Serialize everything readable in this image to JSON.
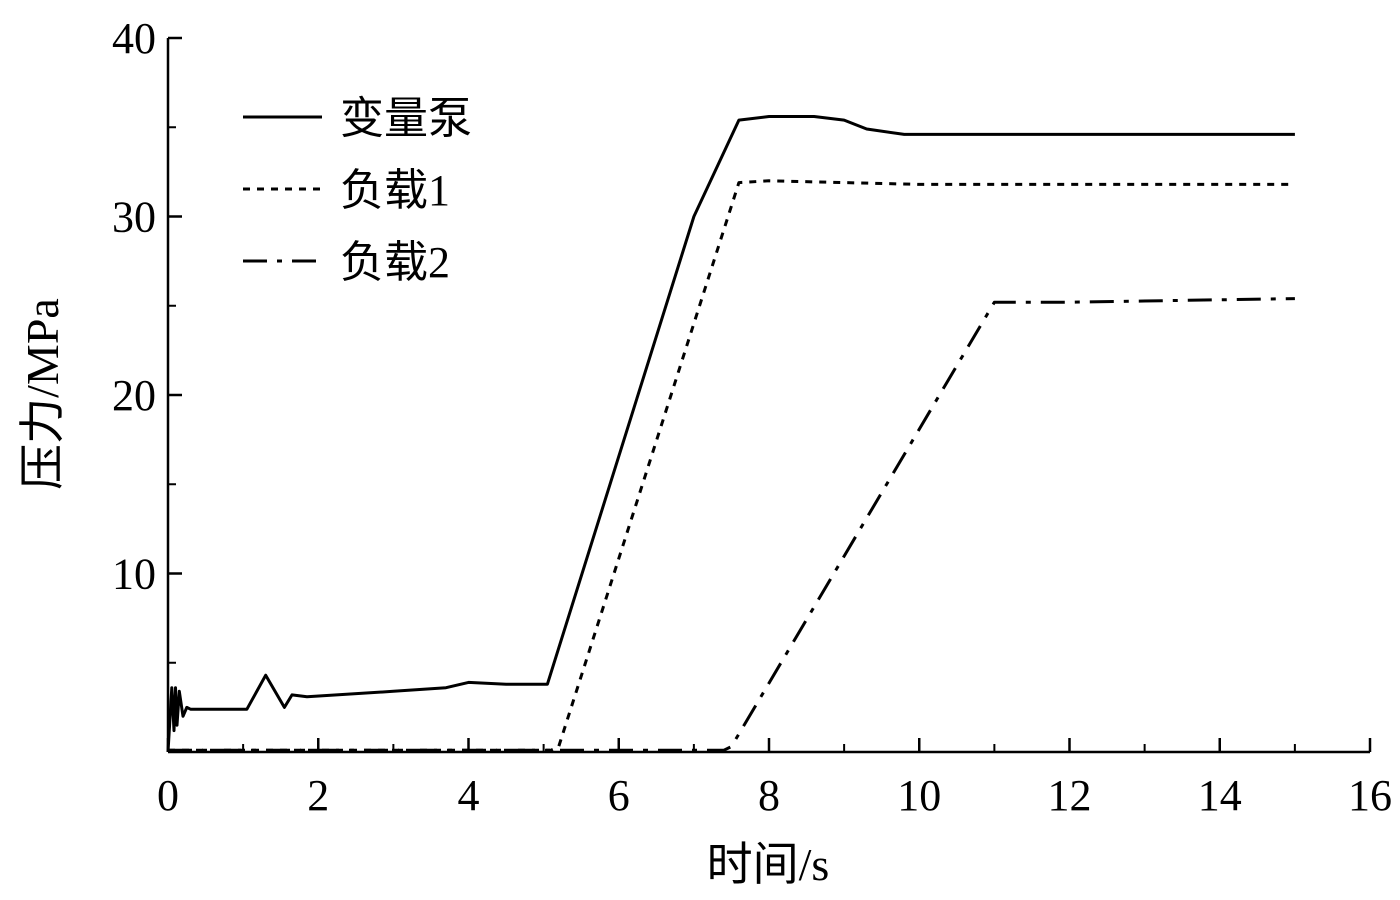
{
  "chart_data": {
    "type": "line",
    "xlabel": "时间/s",
    "ylabel": "压力/MPa",
    "xlim": [
      0,
      16
    ],
    "ylim": [
      0,
      40
    ],
    "xticks": [
      0,
      2,
      4,
      6,
      8,
      10,
      12,
      14,
      16
    ],
    "yticks": [
      10,
      20,
      30,
      40
    ],
    "grid": false,
    "legend_position": "top-left",
    "series": [
      {
        "name": "变量泵",
        "style": "solid",
        "x": [
          0,
          0.05,
          0.08,
          0.1,
          0.12,
          0.15,
          0.2,
          0.25,
          0.3,
          1.05,
          1.3,
          1.55,
          1.65,
          1.85,
          3.0,
          3.7,
          4.0,
          4.5,
          5.05,
          7.0,
          7.6,
          8.0,
          8.6,
          9.0,
          9.3,
          9.8,
          15.0
        ],
        "y": [
          0,
          3.6,
          1.2,
          3.6,
          1.5,
          3.4,
          2.0,
          2.5,
          2.4,
          2.4,
          4.3,
          2.5,
          3.2,
          3.1,
          3.4,
          3.6,
          3.9,
          3.8,
          3.8,
          30.0,
          35.4,
          35.6,
          35.6,
          35.4,
          34.9,
          34.6,
          34.6
        ]
      },
      {
        "name": "负载1",
        "style": "dotted",
        "x": [
          0,
          5.1,
          5.2,
          7.6,
          8.0,
          10.0,
          15.0
        ],
        "y": [
          0.1,
          0.1,
          0.3,
          31.9,
          32.0,
          31.8,
          31.8
        ]
      },
      {
        "name": "负载2",
        "style": "dashdot",
        "x": [
          0,
          7.4,
          7.5,
          11.0,
          12.0,
          15.0
        ],
        "y": [
          0.1,
          0.1,
          0.3,
          25.2,
          25.2,
          25.4
        ]
      }
    ]
  }
}
